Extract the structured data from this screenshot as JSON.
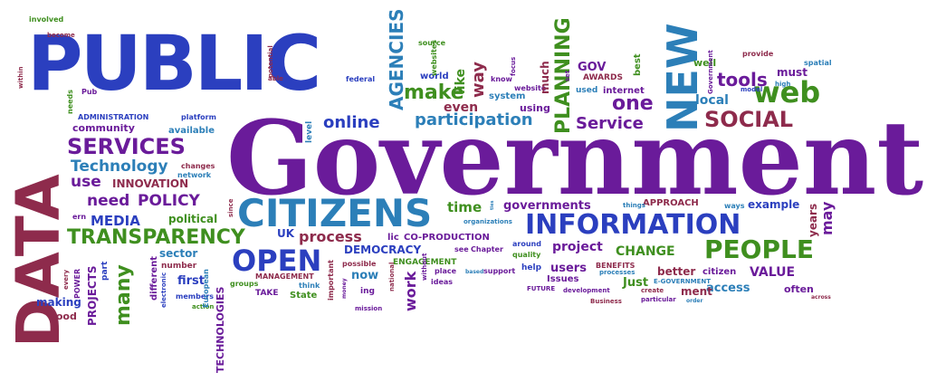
{
  "words": {
    "government": "Government",
    "public": "PUBLIC",
    "data": "DATA",
    "citizens": "CITIZENS",
    "information": "INFORMATION",
    "people": "PEOPLE",
    "new": "NEW",
    "open": "OPEN",
    "services": "SERVICES",
    "transparency": "TRANSPARENCY",
    "social": "SOCIAL",
    "web": "web",
    "tools": "tools",
    "online": "online",
    "participation": "participation",
    "service": "Service",
    "one": "one",
    "make": "make",
    "even": "even",
    "agencies": "AGENCIES",
    "planning": "PLANNING",
    "technology": "Technology",
    "use": "use",
    "innovation": "INNOVATION",
    "need": "need",
    "policy": "POLICY",
    "media": "MEDIA",
    "political": "political",
    "process": "process",
    "democracy": "DEMOCRACY",
    "co_production": "CO-PRODUCTION",
    "engagement": "ENGAGEMENT",
    "time": "time",
    "governments": "governments",
    "approach": "APPROACH",
    "project": "project",
    "change": "CHANGE",
    "value": "VALUE",
    "access": "access",
    "often": "often",
    "better": "better",
    "citizen": "citizen",
    "ment": "ment",
    "users": "users",
    "issues": "Issues",
    "work": "work",
    "now": "now",
    "many": "many",
    "projects": "PROJECTS",
    "making": "making",
    "good": "good",
    "technologies": "TECHNOLOGIES",
    "first": "first",
    "sector": "sector",
    "number": "number",
    "community": "community",
    "available": "available",
    "administration": "ADMINISTRATION",
    "platform": "platform",
    "changes": "changes",
    "network": "network",
    "management": "MANAGEMENT",
    "take": "TAKE",
    "state": "State",
    "think": "think",
    "groups": "groups",
    "uk": "UK",
    "lic": "lic",
    "level": "level",
    "since": "since",
    "gov": "GOV",
    "awards": "AWARDS",
    "used": "used",
    "internet": "internet",
    "local": "local",
    "well": "well",
    "must": "must",
    "high": "high",
    "spatial": "spatial",
    "provide": "provide",
    "model": "model",
    "e_government_v": "Government",
    "best": "best",
    "set": "set",
    "website": "website",
    "using": "using",
    "much": "much",
    "system": "system",
    "know": "know",
    "focus": "focus",
    "way": "way",
    "like": "like",
    "world": "world",
    "websites": "websites",
    "source": "source",
    "federal": "federal",
    "able": "able",
    "potential": "potential",
    "pub": "Pub",
    "needs": "needs",
    "within": "within",
    "become": "become",
    "involved": "involved",
    "ern": "ern",
    "every": "every",
    "power": "POWER",
    "part": "part",
    "electronic": "electronic",
    "members": "members",
    "action": "action",
    "different": "different",
    "european": "European",
    "important": "important",
    "money": "money",
    "ing": "ing",
    "mission": "mission",
    "national": "national",
    "without": "without",
    "place": "place",
    "ideas": "ideas",
    "based": "based",
    "support": "support",
    "see": "see",
    "chapter": "Chapter",
    "possible": "possible",
    "around": "around",
    "quality": "quality",
    "help": "help",
    "benefits": "BENEFITS",
    "processes": "processes",
    "just": "Just",
    "future": "FUTURE",
    "development": "development",
    "business": "Business",
    "particular": "particular",
    "order": "order",
    "create": "create",
    "e_government": "E-GOVERNMENT",
    "across": "across",
    "years": "years",
    "may": "may",
    "ways": "ways",
    "example": "example",
    "things": "things",
    "organizations": "organizations",
    "ties": "ties"
  },
  "colors": {
    "purple": "#6a1b9a",
    "blue": "#2b3fbf",
    "green": "#3f8f1f",
    "maroon": "#8e2b4c",
    "teal": "#2c7fb8",
    "dark_purple": "#4a148c"
  }
}
